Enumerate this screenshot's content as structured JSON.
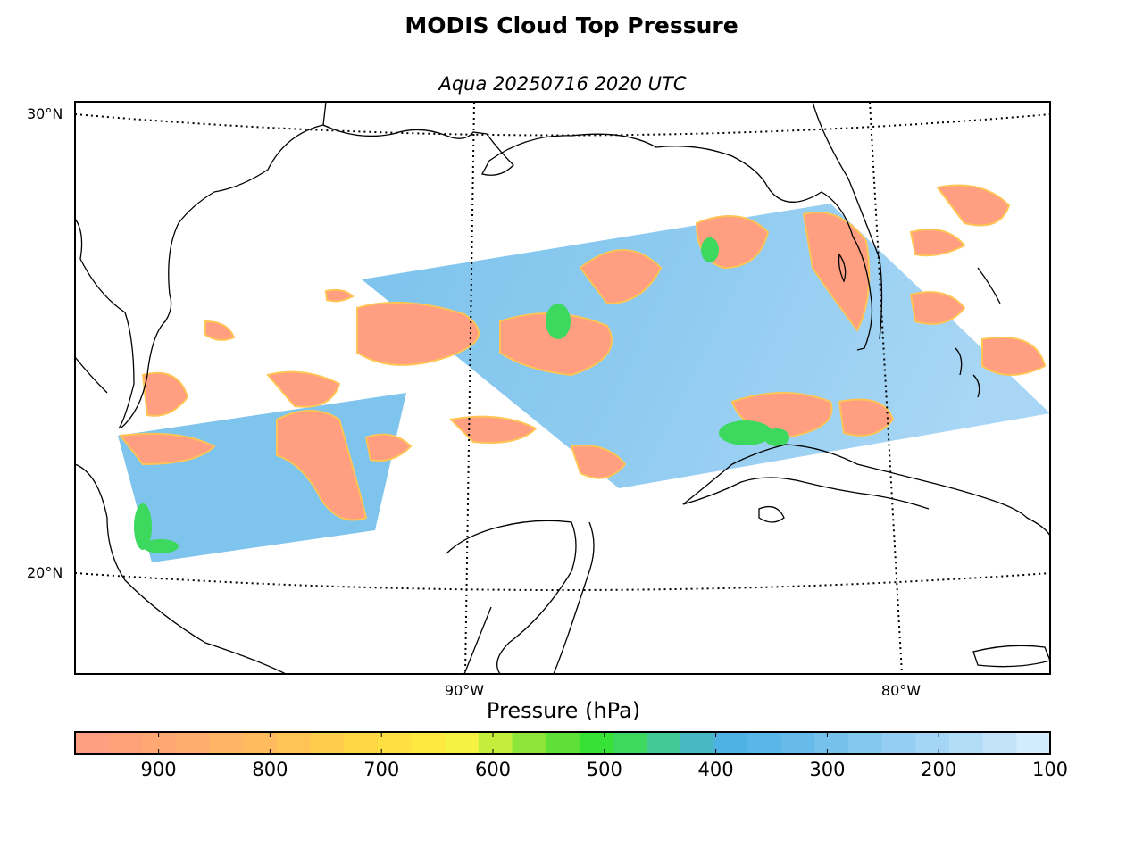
{
  "title": "MODIS Cloud Top Pressure",
  "subtitle": "Aqua 20250716 2020 UTC",
  "lat_labels": [
    "30°N",
    "20°N"
  ],
  "lon_labels": [
    "90°W",
    "80°W"
  ],
  "colorbar": {
    "title": "Pressure (hPa)",
    "ticks": [
      "900",
      "800",
      "700",
      "600",
      "500",
      "400",
      "300",
      "200",
      "100"
    ],
    "range": [
      975,
      100
    ],
    "colors": [
      "#ff9e80",
      "#ffa27a",
      "#ffa874",
      "#ffad6e",
      "#ffb466",
      "#ffbb5e",
      "#ffc455",
      "#ffcd4c",
      "#ffd646",
      "#ffdf42",
      "#fde93f",
      "#f7f143",
      "#c3ee3c",
      "#8ee53a",
      "#5fe038",
      "#37e236",
      "#3dd95e",
      "#43c996",
      "#48b8c2",
      "#4db1e4",
      "#5ab6e8",
      "#66bbea",
      "#76c1ec",
      "#85c8ef",
      "#94cef2",
      "#a4d5f4",
      "#b3dcf7",
      "#c3e3fa",
      "#d2ebfd"
    ]
  },
  "map": {
    "region": "Gulf of Mexico",
    "graticule_lat": [
      30,
      20
    ],
    "graticule_lon": [
      -90,
      -80
    ],
    "cloud_colors": {
      "low": "#ff9e80",
      "mid_low": "#ffd646",
      "mid": "#37e236",
      "high": "#66bbea",
      "very_high": "#b3dcf7"
    }
  }
}
